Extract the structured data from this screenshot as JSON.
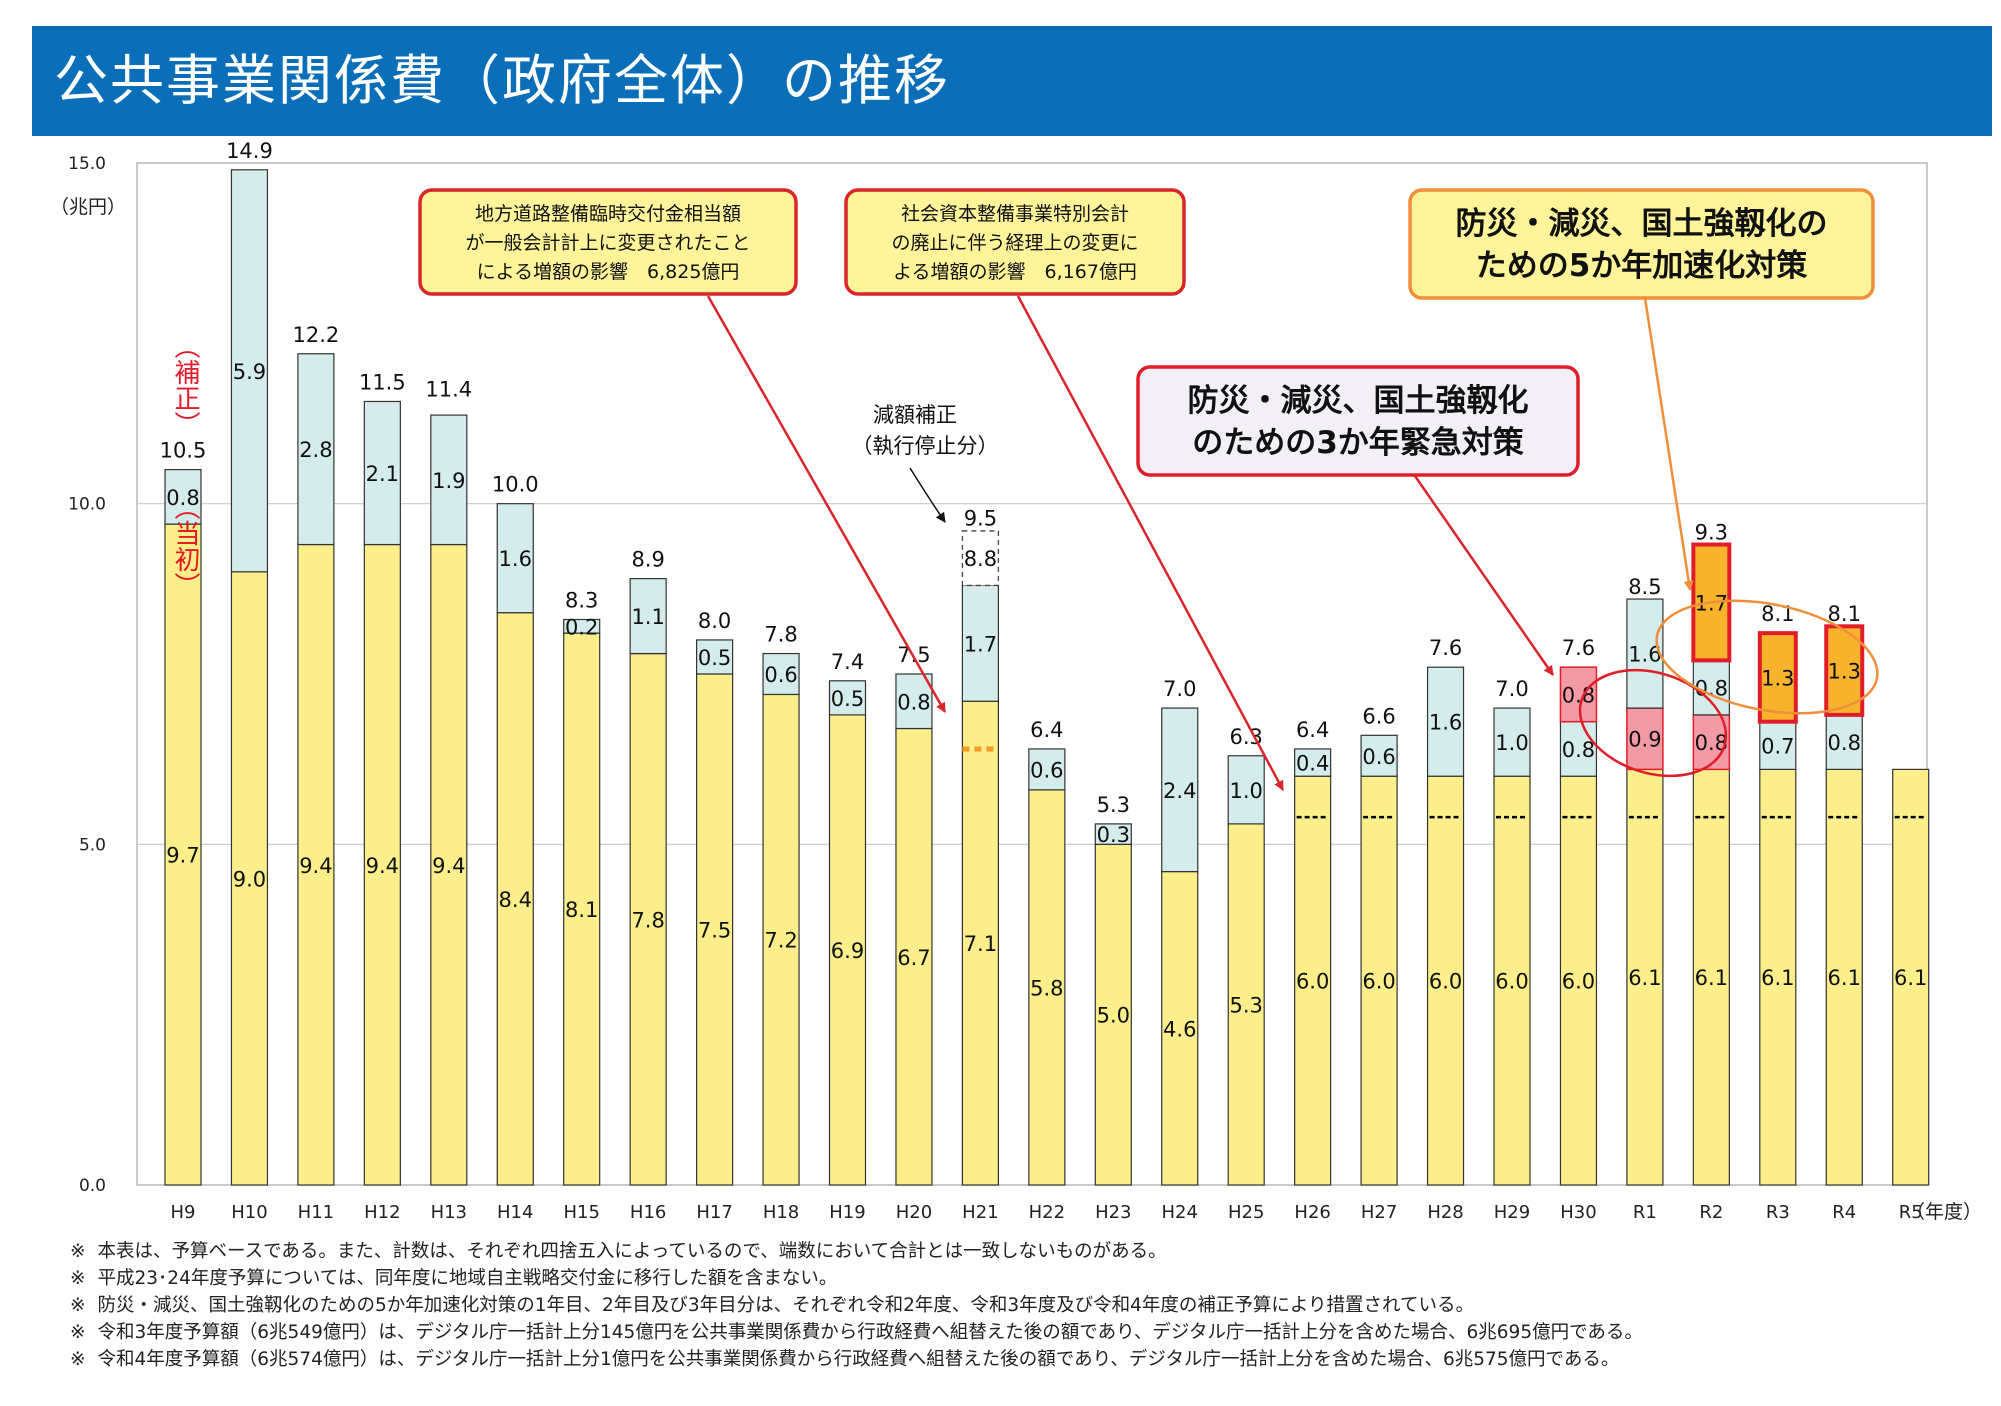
{
  "header": {
    "title": "公共事業関係費（政府全体）の推移"
  },
  "chart_data": {
    "type": "bar",
    "stacked": true,
    "title": "公共事業関係費（政府全体）の推移",
    "ylabel": "（兆円）",
    "xlabel": "（年度）",
    "ylim": [
      0,
      15
    ],
    "yticks": [
      "0.0",
      "5.0",
      "10.0",
      "15.0"
    ],
    "categories": [
      "H9",
      "H10",
      "H11",
      "H12",
      "H13",
      "H14",
      "H15",
      "H16",
      "H17",
      "H18",
      "H19",
      "H20",
      "H21",
      "H22",
      "H23",
      "H24",
      "H25",
      "H26",
      "H27",
      "H28",
      "H29",
      "H30",
      "R1",
      "R2",
      "R3",
      "R4",
      "R5"
    ],
    "series": [
      {
        "name": "当初",
        "color": "#fbee8b",
        "values": [
          9.7,
          9.0,
          9.4,
          9.4,
          9.4,
          8.4,
          8.1,
          7.8,
          7.5,
          7.2,
          6.9,
          6.7,
          7.1,
          5.8,
          5.0,
          4.6,
          5.3,
          6.0,
          6.0,
          6.0,
          6.0,
          6.0,
          6.1,
          6.1,
          6.1,
          6.1,
          6.1
        ],
        "labels": [
          "9.7",
          "9.0",
          "9.4",
          "9.4",
          "9.4",
          "8.4",
          "8.1",
          "7.8",
          "7.5",
          "7.2",
          "6.9",
          "6.7",
          "7.1",
          "5.8",
          "5.0",
          "4.6",
          "5.3",
          "6.0",
          "6.0",
          "6.0",
          "6.0",
          "6.0",
          "6.1",
          "6.1",
          "6.1",
          "6.1",
          "6.1"
        ]
      },
      {
        "name": "3か年緊急対策",
        "color": "#f29aa5",
        "values": [
          0,
          0,
          0,
          0,
          0,
          0,
          0,
          0,
          0,
          0,
          0,
          0,
          0,
          0,
          0,
          0,
          0,
          0,
          0,
          0,
          0,
          0,
          0.9,
          0.8,
          0,
          0,
          0
        ],
        "labels": [
          "",
          "",
          "",
          "",
          "",
          "",
          "",
          "",
          "",
          "",
          "",
          "",
          "",
          "",
          "",
          "",
          "",
          "",
          "",
          "",
          "",
          "",
          "0.9",
          "0.8",
          "",
          "",
          ""
        ]
      },
      {
        "name": "補正",
        "color": "#d4eceb",
        "values": [
          0.8,
          5.9,
          2.8,
          2.1,
          1.9,
          1.6,
          0.2,
          1.1,
          0.5,
          0.6,
          0.5,
          0.8,
          1.7,
          0.6,
          0.3,
          2.4,
          1.0,
          0.4,
          0.6,
          1.6,
          1.0,
          0.8,
          1.6,
          0.8,
          0.7,
          0.8,
          0
        ],
        "labels": [
          "0.8",
          "5.9",
          "2.8",
          "2.1",
          "1.9",
          "1.6",
          "0.2",
          "1.1",
          "0.5",
          "0.6",
          "0.5",
          "0.8",
          "1.7",
          "0.6",
          "0.3",
          "2.4",
          "1.0",
          "0.4",
          "0.6",
          "1.6",
          "1.0",
          "0.8",
          "1.6",
          "0.8",
          "0.7",
          "0.8",
          ""
        ]
      },
      {
        "name": "3か年緊急対策（補正）",
        "color": "#f29aa5",
        "values": [
          0,
          0,
          0,
          0,
          0,
          0,
          0,
          0,
          0,
          0,
          0,
          0,
          0,
          0,
          0,
          0,
          0,
          0,
          0,
          0,
          0,
          0.8,
          0,
          0,
          0,
          0,
          0
        ],
        "labels": [
          "",
          "",
          "",
          "",
          "",
          "",
          "",
          "",
          "",
          "",
          "",
          "",
          "",
          "",
          "",
          "",
          "",
          "",
          "",
          "",
          "",
          "0.8",
          "",
          "",
          "",
          "",
          ""
        ]
      },
      {
        "name": "5か年加速化対策",
        "color": "#f7b32b",
        "values": [
          0,
          0,
          0,
          0,
          0,
          0,
          0,
          0,
          0,
          0,
          0,
          0,
          0,
          0,
          0,
          0,
          0,
          0,
          0,
          0,
          0,
          0,
          0,
          1.7,
          1.3,
          1.3,
          0
        ],
        "labels": [
          "",
          "",
          "",
          "",
          "",
          "",
          "",
          "",
          "",
          "",
          "",
          "",
          "",
          "",
          "",
          "",
          "",
          "",
          "",
          "",
          "",
          "",
          "",
          "1.7",
          "1.3",
          "1.3",
          ""
        ]
      }
    ],
    "totals": [
      "10.5",
      "14.9",
      "12.2",
      "11.5",
      "11.4",
      "10.0",
      "8.3",
      "8.9",
      "8.0",
      "7.8",
      "7.4",
      "7.5",
      "9.5",
      "6.4",
      "5.3",
      "7.0",
      "6.3",
      "6.4",
      "6.6",
      "7.6",
      "7.0",
      "7.6",
      "8.5",
      "9.3",
      "8.1",
      "8.1",
      ""
    ],
    "h21_reduction": {
      "value": 0.8,
      "label": "8.8",
      "annotation": [
        "減額補正",
        "（執行停止分）"
      ]
    },
    "h9_labels": {
      "supplementary": "（補正）",
      "initial": "（当初）"
    },
    "baseline_dashes": {
      "from": "H26",
      "value": 5.4,
      "color": "#000000"
    },
    "h21_dash": {
      "value": 6.4,
      "color": "#f39c1f"
    },
    "callouts": [
      {
        "lines": [
          "地方道路整備臨時交付金相当額",
          "が一般会計計上に変更されたこと",
          "による増額の影響　6,825億円"
        ],
        "target": "H21"
      },
      {
        "lines": [
          "社会資本整備事業特別会計",
          "の廃止に伴う経理上の変更に",
          "よる増額の影響　6,167億円"
        ],
        "target": "H26"
      },
      {
        "lines": [
          "防災・減災、国土強靱化",
          "のための3か年緊急対策"
        ],
        "target": "H30–R2"
      },
      {
        "lines": [
          "防災・減災、国土強靱化の",
          "ための5か年加速化対策"
        ],
        "target": "R2–R4"
      }
    ]
  },
  "notes": [
    "本表は、予算ベースである。また、計数は、それぞれ四捨五入によっているので、端数において合計とは一致しないものがある。",
    "平成23･24年度予算については、同年度に地域自主戦略交付金に移行した額を含まない。",
    "防災・減災、国土強靱化のための5か年加速化対策の1年目、2年目及び3年目分は、それぞれ令和2年度、令和3年度及び令和4年度の補正予算により措置されている。",
    "令和3年度予算額（6兆549億円）は、デジタル庁一括計上分145億円を公共事業関係費から行政経費へ組替えた後の額であり、デジタル庁一括計上分を含めた場合、6兆695億円である。",
    "令和4年度予算額（6兆574億円）は、デジタル庁一括計上分1億円を公共事業関係費から行政経費へ組替えた後の額であり、デジタル庁一括計上分を含めた場合、6兆575億円である。"
  ],
  "note_mark": "※",
  "colors": {
    "header": "#0a6fb8",
    "initial": "#fbee8b",
    "supplementary": "#d4eceb",
    "emergency3": "#f29aa5",
    "acceleration5": "#f7b32b",
    "callout_red": "#d9252b",
    "callout_orange": "#f08e3a"
  }
}
